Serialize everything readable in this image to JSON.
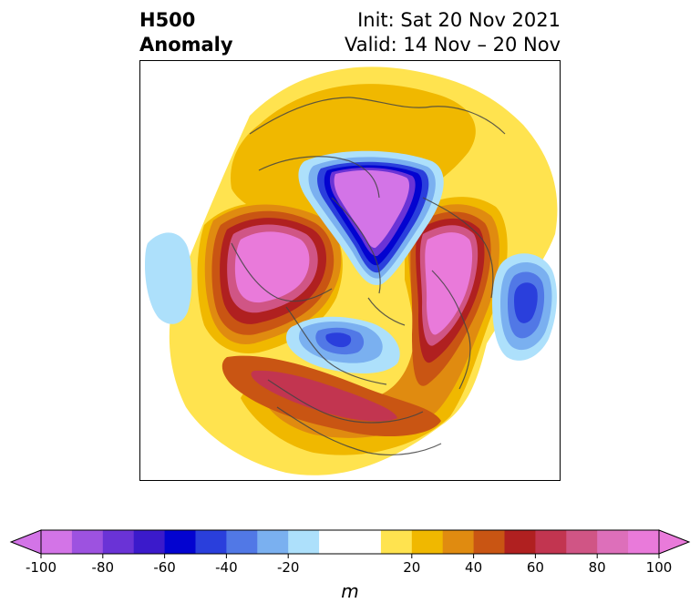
{
  "header": {
    "title_line1": "H500",
    "title_line2": "Anomaly",
    "init": "Init: Sat 20 Nov 2021",
    "valid": "Valid: 14 Nov – 20 Nov"
  },
  "colorbar": {
    "min": -100,
    "max": 100,
    "step": 10,
    "extend": "both",
    "unit": "m",
    "tick_labels": [
      "-100",
      "-80",
      "-60",
      "-40",
      "-20",
      "20",
      "40",
      "60",
      "80",
      "100"
    ],
    "tick_values": [
      -100,
      -80,
      -60,
      -40,
      -20,
      20,
      40,
      60,
      80,
      100
    ],
    "colors": [
      "#d374e7",
      "#9d52e0",
      "#6a33d6",
      "#3b1acb",
      "#0303d0",
      "#2a3fdc",
      "#5178e6",
      "#7ab0f0",
      "#ade0fb",
      "#ffffff",
      "#ffffff",
      "#ffe34f",
      "#f0b800",
      "#e08b10",
      "#c95513",
      "#b02020",
      "#c23550",
      "#d05585",
      "#dd6fba",
      "#e97ada"
    ]
  },
  "map": {
    "projection": "north-polar-stereographic",
    "colors": {
      "yellow": "#ffe34f",
      "gold": "#f0b800",
      "orange": "#e08b10",
      "burnt": "#c95513",
      "red": "#b02020",
      "rose": "#c23550",
      "pink": "#d05585",
      "magenta": "#dd6fba",
      "violet": "#e97ada",
      "lightblue": "#ade0fb",
      "skyblue": "#7ab0f0",
      "blue": "#5178e6",
      "royal": "#2a3fdc",
      "navy": "#0303d0",
      "indigo": "#3b1acb",
      "purple": "#6a33d6",
      "lilac": "#d374e7"
    }
  }
}
